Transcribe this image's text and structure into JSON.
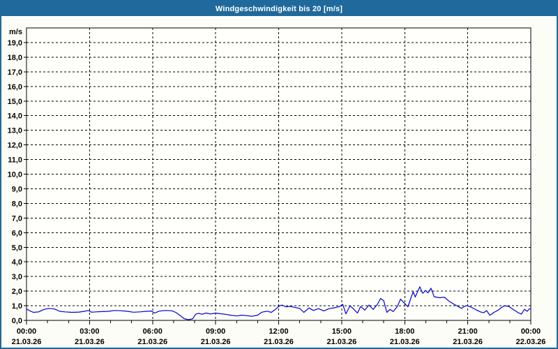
{
  "window": {
    "title": "Windgeschwindigkeit bis 20 [m/s]"
  },
  "colors": {
    "titlebar_bg": "#1f699c",
    "titlebar_text": "#ffffff",
    "frame_border": "#1f699c",
    "page_bg": "#fdfdf8",
    "plot_bg": "#fffffb",
    "grid": "#000000",
    "axis": "#000000",
    "tick_text": "#000000",
    "series_line": "#0000cc"
  },
  "chart_data": {
    "type": "line",
    "title": "Windgeschwindigkeit bis 20 [m/s]",
    "unit_label": "m/s",
    "ylim": [
      0,
      20
    ],
    "y_tick_step": 1,
    "y_tick_labels": [
      "0,0",
      "1,0",
      "2,0",
      "3,0",
      "4,0",
      "5,0",
      "6,0",
      "7,0",
      "8,0",
      "9,0",
      "10,0",
      "11,0",
      "12,0",
      "13,0",
      "14,0",
      "15,0",
      "16,0",
      "17,0",
      "18,0",
      "19,0"
    ],
    "xlim_hours": [
      0,
      24
    ],
    "x_minor_step_hours": 1,
    "x_major_ticks": [
      {
        "hour": 0,
        "time": "00:00",
        "date": "21.03.26"
      },
      {
        "hour": 3,
        "time": "03:00",
        "date": "21.03.26"
      },
      {
        "hour": 6,
        "time": "06:00",
        "date": "21.03.26"
      },
      {
        "hour": 9,
        "time": "09:00",
        "date": "21.03.26"
      },
      {
        "hour": 12,
        "time": "12:00",
        "date": "21.03.26"
      },
      {
        "hour": 15,
        "time": "15:00",
        "date": "21.03.26"
      },
      {
        "hour": 18,
        "time": "18:00",
        "date": "21.03.26"
      },
      {
        "hour": 21,
        "time": "21:00",
        "date": "21.03.26"
      },
      {
        "hour": 24,
        "time": "00:00",
        "date": "22.03.26"
      }
    ],
    "grid": "dashed",
    "legend": "none",
    "series": [
      {
        "name": "Windgeschwindigkeit",
        "color": "#0000cc",
        "points": [
          [
            0.0,
            0.78
          ],
          [
            0.17,
            0.65
          ],
          [
            0.33,
            0.55
          ],
          [
            0.58,
            0.58
          ],
          [
            0.83,
            0.75
          ],
          [
            1.08,
            0.82
          ],
          [
            1.33,
            0.78
          ],
          [
            1.58,
            0.62
          ],
          [
            1.83,
            0.58
          ],
          [
            2.17,
            0.55
          ],
          [
            2.5,
            0.57
          ],
          [
            2.75,
            0.62
          ],
          [
            2.95,
            0.68
          ],
          [
            3.1,
            0.56
          ],
          [
            3.3,
            0.58
          ],
          [
            3.6,
            0.6
          ],
          [
            3.9,
            0.62
          ],
          [
            4.2,
            0.68
          ],
          [
            4.5,
            0.66
          ],
          [
            4.8,
            0.62
          ],
          [
            5.1,
            0.56
          ],
          [
            5.4,
            0.58
          ],
          [
            5.7,
            0.62
          ],
          [
            5.95,
            0.64
          ],
          [
            6.1,
            0.5
          ],
          [
            6.3,
            0.63
          ],
          [
            6.6,
            0.68
          ],
          [
            6.9,
            0.66
          ],
          [
            7.1,
            0.55
          ],
          [
            7.3,
            0.35
          ],
          [
            7.5,
            0.12
          ],
          [
            7.7,
            0.05
          ],
          [
            7.9,
            0.1
          ],
          [
            8.05,
            0.42
          ],
          [
            8.2,
            0.48
          ],
          [
            8.35,
            0.42
          ],
          [
            8.55,
            0.5
          ],
          [
            8.75,
            0.44
          ],
          [
            9.0,
            0.5
          ],
          [
            9.2,
            0.46
          ],
          [
            9.45,
            0.42
          ],
          [
            9.7,
            0.36
          ],
          [
            10.0,
            0.3
          ],
          [
            10.25,
            0.36
          ],
          [
            10.5,
            0.32
          ],
          [
            10.75,
            0.28
          ],
          [
            11.0,
            0.36
          ],
          [
            11.2,
            0.56
          ],
          [
            11.45,
            0.63
          ],
          [
            11.65,
            0.55
          ],
          [
            11.85,
            0.76
          ],
          [
            12.0,
            0.95
          ],
          [
            12.15,
            1.05
          ],
          [
            12.35,
            0.92
          ],
          [
            12.55,
            0.96
          ],
          [
            12.8,
            0.88
          ],
          [
            13.0,
            0.82
          ],
          [
            13.2,
            0.55
          ],
          [
            13.45,
            0.85
          ],
          [
            13.65,
            0.68
          ],
          [
            13.9,
            0.8
          ],
          [
            14.15,
            0.65
          ],
          [
            14.4,
            0.8
          ],
          [
            14.65,
            0.86
          ],
          [
            14.9,
            0.95
          ],
          [
            15.05,
            1.1
          ],
          [
            15.2,
            0.45
          ],
          [
            15.4,
            1.0
          ],
          [
            15.55,
            0.8
          ],
          [
            15.75,
            0.5
          ],
          [
            15.9,
            0.95
          ],
          [
            16.1,
            0.7
          ],
          [
            16.3,
            1.05
          ],
          [
            16.5,
            0.75
          ],
          [
            16.7,
            1.1
          ],
          [
            16.85,
            1.5
          ],
          [
            17.0,
            1.35
          ],
          [
            17.15,
            0.55
          ],
          [
            17.3,
            0.75
          ],
          [
            17.45,
            0.6
          ],
          [
            17.65,
            0.95
          ],
          [
            17.8,
            1.45
          ],
          [
            18.0,
            1.15
          ],
          [
            18.15,
            0.93
          ],
          [
            18.3,
            1.55
          ],
          [
            18.4,
            1.95
          ],
          [
            18.5,
            1.6
          ],
          [
            18.72,
            2.3
          ],
          [
            18.85,
            1.85
          ],
          [
            19.0,
            2.05
          ],
          [
            19.1,
            1.88
          ],
          [
            19.25,
            2.2
          ],
          [
            19.4,
            1.62
          ],
          [
            19.65,
            1.55
          ],
          [
            19.9,
            1.58
          ],
          [
            20.1,
            1.32
          ],
          [
            20.35,
            1.1
          ],
          [
            20.55,
            0.95
          ],
          [
            20.7,
            0.82
          ],
          [
            20.9,
            1.0
          ],
          [
            21.0,
            1.0
          ],
          [
            21.2,
            0.88
          ],
          [
            21.4,
            0.72
          ],
          [
            21.6,
            0.58
          ],
          [
            21.75,
            0.52
          ],
          [
            21.9,
            0.67
          ],
          [
            22.05,
            0.35
          ],
          [
            22.25,
            0.55
          ],
          [
            22.45,
            0.7
          ],
          [
            22.6,
            0.88
          ],
          [
            22.75,
            1.0
          ],
          [
            22.95,
            0.96
          ],
          [
            23.15,
            0.76
          ],
          [
            23.4,
            0.53
          ],
          [
            23.55,
            0.43
          ],
          [
            23.7,
            0.76
          ],
          [
            23.82,
            0.62
          ],
          [
            23.95,
            0.8
          ],
          [
            24.0,
            0.8
          ]
        ]
      }
    ]
  }
}
